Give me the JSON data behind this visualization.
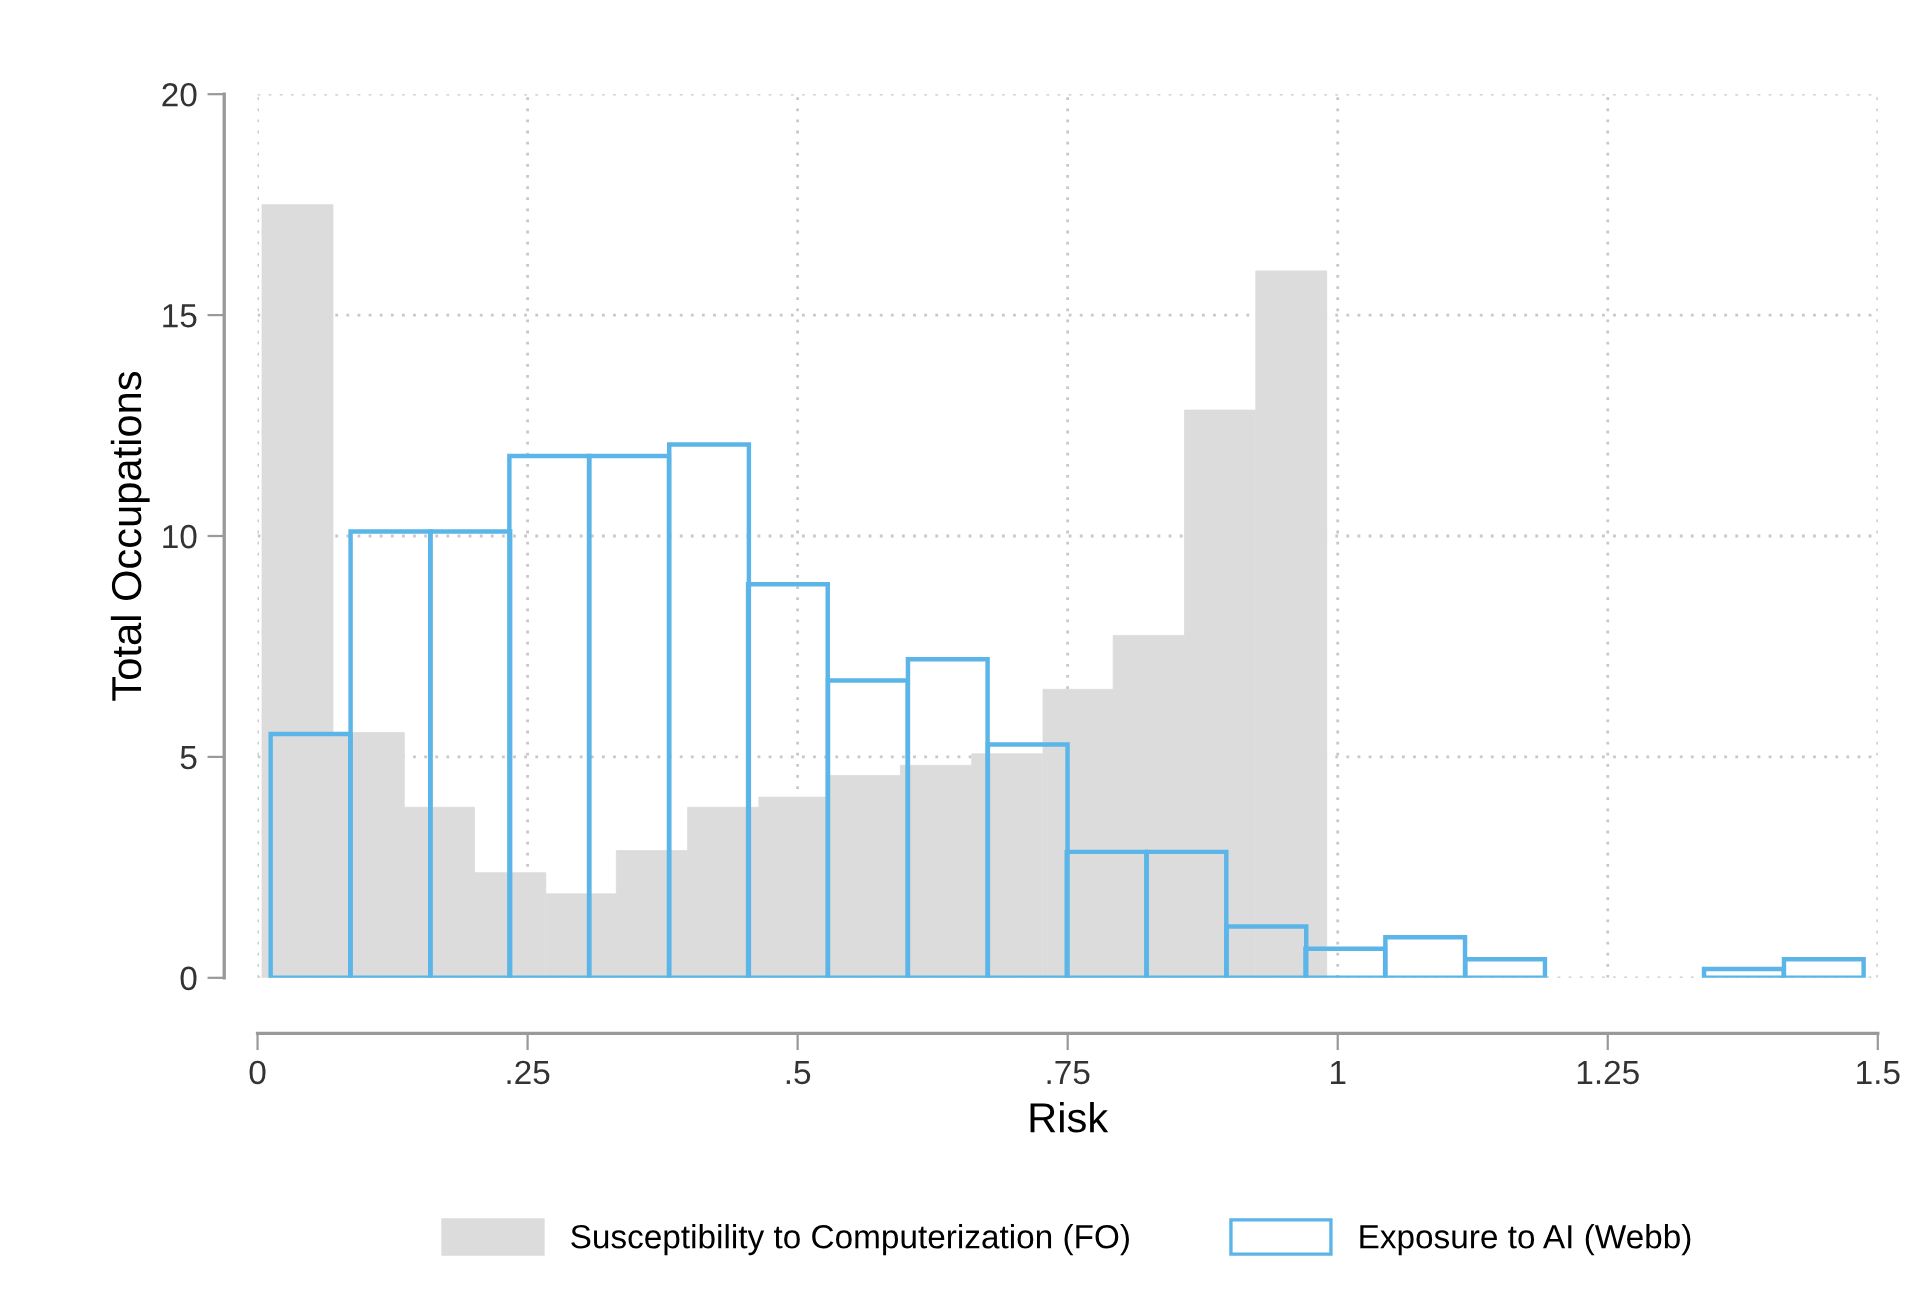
{
  "chart_data": {
    "type": "bar",
    "xlabel": "Risk",
    "ylabel": "Total Occupations",
    "xlim": [
      0,
      1.5
    ],
    "ylim": [
      0,
      20
    ],
    "xticks": [
      0,
      {
        "value": 0.25,
        "label": ".25"
      },
      {
        "value": 0.5,
        "label": ".5"
      },
      {
        "value": 0.75,
        "label": ".75"
      },
      1,
      1.25,
      1.5
    ],
    "yticks": [
      0,
      5,
      10,
      15,
      20
    ],
    "grid": true,
    "legend": "bottom",
    "series": [
      {
        "name": "Susceptibility to Computerization (FO)",
        "color": "#dcdcdc",
        "x": [
          0.037,
          0.103,
          0.168,
          0.234,
          0.3,
          0.365,
          0.431,
          0.497,
          0.563,
          0.628,
          0.694,
          0.76,
          0.825,
          0.891,
          0.957
        ],
        "values": [
          17.5,
          5.55,
          3.86,
          2.38,
          1.9,
          2.88,
          3.86,
          4.09,
          4.58,
          4.81,
          5.07,
          6.53,
          7.75,
          12.85,
          16.0
        ]
      },
      {
        "name": "Exposure to AI (Webb)",
        "color": "#5bb5e8",
        "x": [
          0.049,
          0.123,
          0.197,
          0.27,
          0.344,
          0.418,
          0.491,
          0.565,
          0.639,
          0.713,
          0.786,
          0.86,
          0.934,
          1.007,
          1.081,
          1.155,
          1.228,
          1.302,
          1.376,
          1.45
        ],
        "values": [
          5.52,
          10.1,
          10.1,
          11.81,
          11.81,
          12.07,
          8.91,
          6.73,
          7.21,
          5.28,
          2.85,
          2.85,
          1.16,
          0.66,
          0.92,
          0.42,
          0,
          0,
          0.2,
          0.42
        ]
      }
    ]
  }
}
